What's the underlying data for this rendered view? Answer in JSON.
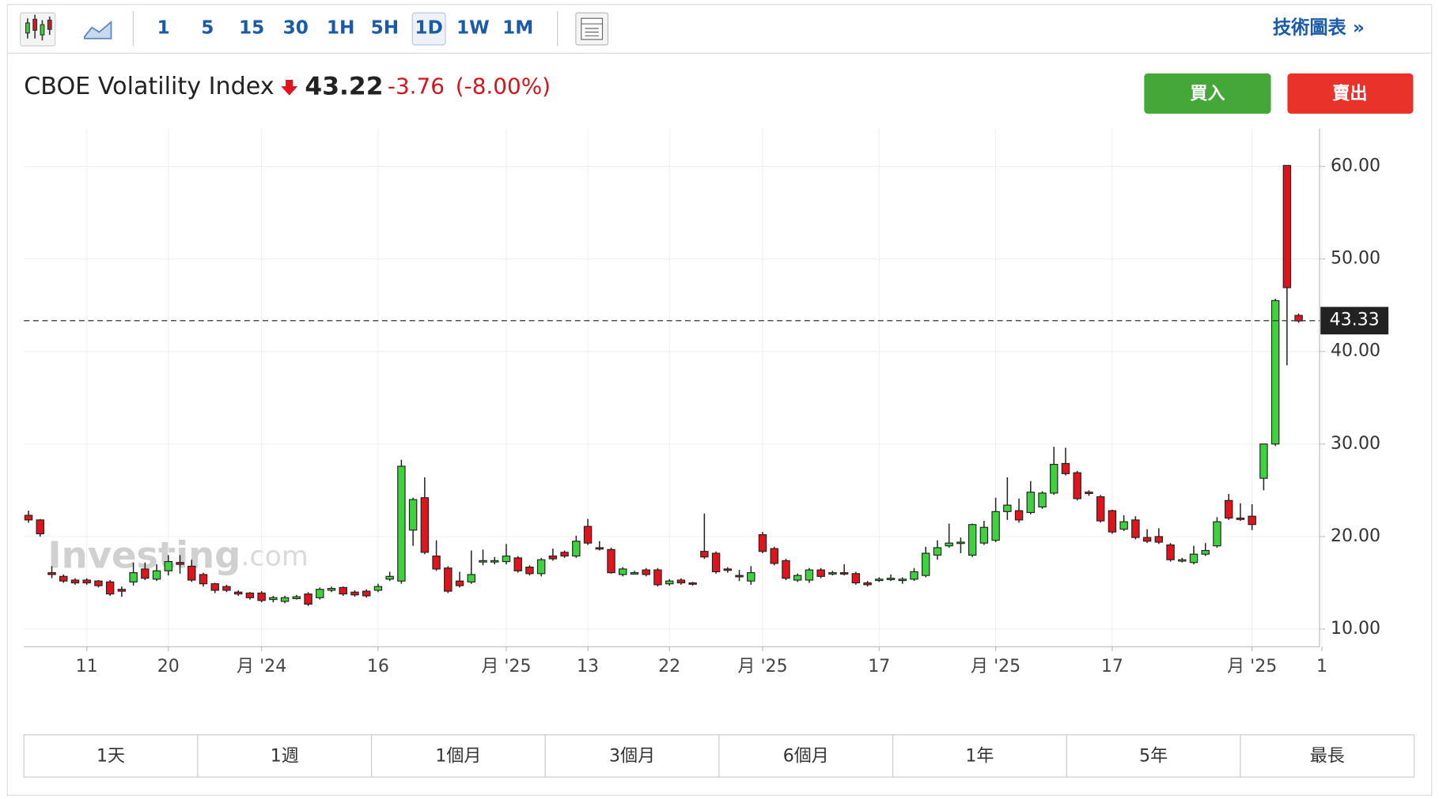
{
  "toolbar": {
    "intervals": [
      "1",
      "5",
      "15",
      "30",
      "1H",
      "5H",
      "1D",
      "1W",
      "1M"
    ],
    "link": "技術圖表 »"
  },
  "header": {
    "name": "CBOE Volatility Index",
    "price": "43.22",
    "change": "-3.76",
    "change_pct": "(-8.00%)"
  },
  "buttons": {
    "buy": "買入",
    "sell": "賣出"
  },
  "watermark": {
    "brand": "Investing",
    "suffix": ".com"
  },
  "ranges": [
    "1天",
    "1週",
    "1個月",
    "3個月",
    "6個月",
    "1年",
    "5年",
    "最長"
  ],
  "chart_data": {
    "type": "candlestick",
    "categories": [
      null,
      null,
      null,
      null,
      null,
      "11",
      null,
      null,
      null,
      null,
      null,
      null,
      "20",
      null,
      null,
      null,
      null,
      null,
      null,
      null,
      "月 '24",
      null,
      null,
      null,
      null,
      null,
      null,
      null,
      null,
      null,
      "16",
      null,
      null,
      null,
      null,
      null,
      null,
      null,
      null,
      null,
      null,
      "月 '25",
      null,
      null,
      null,
      null,
      null,
      null,
      "13",
      null,
      null,
      null,
      null,
      null,
      null,
      "22",
      null,
      null,
      null,
      null,
      null,
      null,
      null,
      "月 '25",
      null,
      null,
      null,
      null,
      null,
      null,
      null,
      null,
      null,
      "17",
      null,
      null,
      null,
      null,
      null,
      null,
      null,
      null,
      null,
      "月 '25",
      null,
      null,
      null,
      null,
      null,
      null,
      null,
      null,
      null,
      "17",
      null,
      null,
      null,
      null,
      null,
      null,
      null,
      null,
      null,
      null,
      null,
      "月 '25",
      null,
      null,
      null,
      null,
      null,
      "1"
    ],
    "open": [
      22.3,
      21.8,
      16.1,
      15.7,
      15.3,
      15.3,
      15.2,
      15.1,
      14.3,
      15.1,
      16.5,
      15.4,
      16.3,
      17.2,
      16.8,
      15.9,
      14.9,
      14.6,
      14.0,
      13.9,
      13.9,
      13.2,
      13.0,
      13.3,
      13.8,
      13.4,
      14.2,
      14.5,
      14.0,
      14.1,
      14.2,
      15.4,
      15.2,
      20.7,
      24.2,
      17.9,
      16.6,
      15.2,
      15.1,
      17.3,
      17.3,
      17.3,
      17.7,
      16.7,
      16.0,
      17.9,
      18.3,
      17.9,
      21.1,
      18.8,
      18.6,
      15.9,
      16.0,
      16.4,
      16.4,
      14.9,
      15.3,
      15.0,
      18.4,
      18.2,
      16.5,
      15.8,
      15.2,
      20.2,
      18.7,
      17.4,
      15.3,
      15.3,
      16.4,
      16.0,
      16.1,
      16.0,
      15.0,
      15.3,
      15.4,
      15.3,
      15.4,
      15.8,
      18.0,
      19.0,
      19.3,
      18.0,
      19.3,
      19.6,
      22.7,
      22.8,
      22.6,
      23.2,
      24.7,
      27.9,
      26.9,
      24.8,
      24.3,
      22.8,
      20.8,
      21.8,
      19.9,
      20.0,
      19.1,
      17.4,
      17.2,
      18.1,
      19.0,
      23.9,
      22.0,
      22.2,
      26.3,
      30.0,
      60.1,
      43.9,
      null,
      null
    ],
    "high": [
      22.8,
      21.9,
      16.8,
      15.9,
      15.5,
      15.5,
      15.3,
      15.3,
      14.6,
      17.2,
      17.2,
      17.0,
      18.0,
      18.0,
      17.5,
      16.1,
      15.0,
      14.8,
      14.2,
      14.0,
      14.1,
      13.6,
      13.6,
      13.7,
      14.0,
      14.5,
      14.6,
      14.6,
      14.2,
      14.3,
      14.9,
      16.2,
      28.3,
      24.2,
      26.4,
      19.6,
      16.8,
      16.2,
      18.5,
      18.6,
      17.8,
      19.2,
      17.9,
      16.9,
      17.7,
      18.7,
      18.5,
      20.1,
      21.9,
      19.5,
      18.8,
      16.7,
      16.3,
      16.6,
      16.6,
      15.4,
      15.5,
      15.1,
      22.5,
      18.4,
      16.7,
      16.4,
      16.8,
      20.5,
      18.9,
      17.6,
      16.0,
      16.6,
      16.6,
      16.3,
      17.0,
      16.2,
      15.2,
      15.6,
      15.9,
      15.6,
      16.6,
      18.9,
      19.6,
      21.4,
      19.9,
      21.4,
      21.7,
      24.2,
      26.4,
      24.1,
      26.0,
      24.9,
      29.7,
      29.6,
      27.1,
      25.0,
      24.5,
      22.9,
      22.3,
      22.2,
      20.8,
      20.9,
      19.3,
      17.7,
      19.0,
      19.3,
      22.1,
      24.6,
      23.6,
      23.5,
      30.0,
      45.7,
      60.1,
      44.1,
      null,
      null
    ],
    "low": [
      21.5,
      20.0,
      15.5,
      15.0,
      14.8,
      14.8,
      14.5,
      13.6,
      13.5,
      14.7,
      15.3,
      15.2,
      15.8,
      16.0,
      15.1,
      14.6,
      13.9,
      14.0,
      13.6,
      13.2,
      12.9,
      12.9,
      12.8,
      13.2,
      12.5,
      13.2,
      14.0,
      13.6,
      13.5,
      13.4,
      14.0,
      15.2,
      14.9,
      19.0,
      18.1,
      16.3,
      13.9,
      14.5,
      14.9,
      16.9,
      17.0,
      17.0,
      16.1,
      15.8,
      15.7,
      17.4,
      17.7,
      17.7,
      19.1,
      18.5,
      16.0,
      15.7,
      15.9,
      15.7,
      14.6,
      14.7,
      14.8,
      14.7,
      17.6,
      16.0,
      16.1,
      15.2,
      14.8,
      18.2,
      16.9,
      15.3,
      15.1,
      15.0,
      15.5,
      15.8,
      15.8,
      14.8,
      14.6,
      15.1,
      15.2,
      14.9,
      15.2,
      15.6,
      17.5,
      18.8,
      18.2,
      17.8,
      19.1,
      19.4,
      21.8,
      21.5,
      22.4,
      23.0,
      24.5,
      26.6,
      23.9,
      24.4,
      21.5,
      20.3,
      20.6,
      19.7,
      19.3,
      19.2,
      17.3,
      17.2,
      17.0,
      17.9,
      18.8,
      21.8,
      21.7,
      20.7,
      25.0,
      29.8,
      38.5,
      43.1,
      null,
      null
    ],
    "close": [
      21.8,
      20.3,
      15.9,
      15.2,
      15.0,
      15.0,
      14.7,
      13.8,
      14.1,
      16.1,
      15.5,
      16.3,
      17.3,
      17.0,
      15.3,
      14.9,
      14.2,
      14.2,
      13.8,
      13.4,
      13.1,
      13.4,
      13.4,
      13.5,
      12.7,
      14.3,
      14.4,
      13.8,
      13.7,
      13.6,
      14.6,
      15.7,
      27.6,
      24.0,
      18.3,
      16.5,
      14.1,
      14.7,
      15.9,
      17.4,
      17.4,
      17.9,
      16.3,
      16.0,
      17.5,
      17.6,
      17.9,
      19.5,
      19.3,
      18.7,
      16.1,
      16.5,
      16.1,
      15.9,
      14.8,
      15.2,
      15.0,
      14.9,
      17.8,
      16.2,
      16.4,
      15.7,
      16.1,
      18.4,
      17.1,
      15.5,
      15.8,
      16.4,
      15.7,
      16.1,
      16.0,
      15.0,
      14.8,
      15.4,
      15.5,
      15.4,
      16.2,
      18.2,
      18.8,
      19.3,
      19.4,
      21.3,
      21.0,
      22.7,
      23.4,
      21.8,
      24.8,
      24.7,
      27.8,
      26.8,
      24.1,
      24.7,
      21.7,
      20.5,
      21.6,
      19.9,
      19.5,
      19.4,
      17.5,
      17.5,
      18.1,
      18.5,
      21.6,
      22.0,
      21.9,
      21.3,
      30.0,
      45.5,
      46.9,
      43.3,
      null,
      null
    ],
    "up_color": "#3ed23e",
    "down_color": "#e0141c",
    "last_price": {
      "value": 43.33,
      "label": "43.33"
    },
    "ylim": [
      8.1,
      64.1
    ],
    "yticks": [
      {
        "value": 10,
        "label": "10.00"
      },
      {
        "value": 20,
        "label": "20.00"
      },
      {
        "value": 30,
        "label": "30.00"
      },
      {
        "value": 40,
        "label": "40.00"
      },
      {
        "value": 50,
        "label": "50.00"
      },
      {
        "value": 60,
        "label": "60.00"
      }
    ],
    "grid": true
  }
}
